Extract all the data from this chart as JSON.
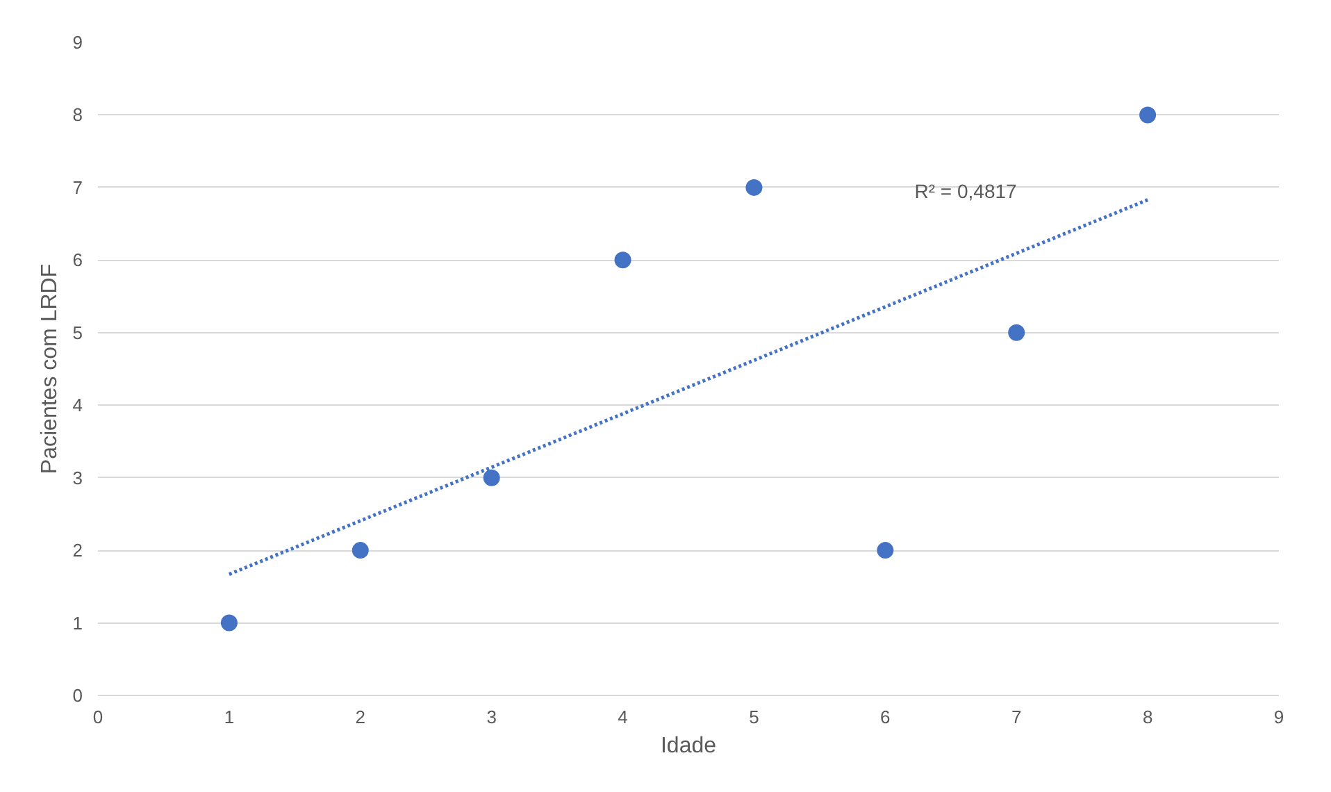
{
  "chart_data": {
    "type": "scatter",
    "xlabel": "Idade",
    "ylabel": "Pacientes com LRDF",
    "xlim": [
      0,
      9
    ],
    "ylim": [
      0,
      9
    ],
    "xticks": [
      0,
      1,
      2,
      3,
      4,
      5,
      6,
      7,
      8,
      9
    ],
    "yticks": [
      0,
      1,
      2,
      3,
      4,
      5,
      6,
      7,
      8,
      9
    ],
    "grid": "y",
    "series": [
      {
        "color": "#4472c4",
        "marker": "circle",
        "x": [
          1,
          2,
          3,
          4,
          5,
          6,
          7,
          8
        ],
        "values": [
          1,
          2,
          3,
          6,
          7,
          2,
          5,
          8
        ]
      },
      {
        "type": "line",
        "color": "#4472c4",
        "line_style": "dotted",
        "x": [
          1,
          8
        ],
        "values": [
          1.67,
          6.83
        ]
      }
    ],
    "annotations": [
      "R² = 0,4817"
    ]
  }
}
